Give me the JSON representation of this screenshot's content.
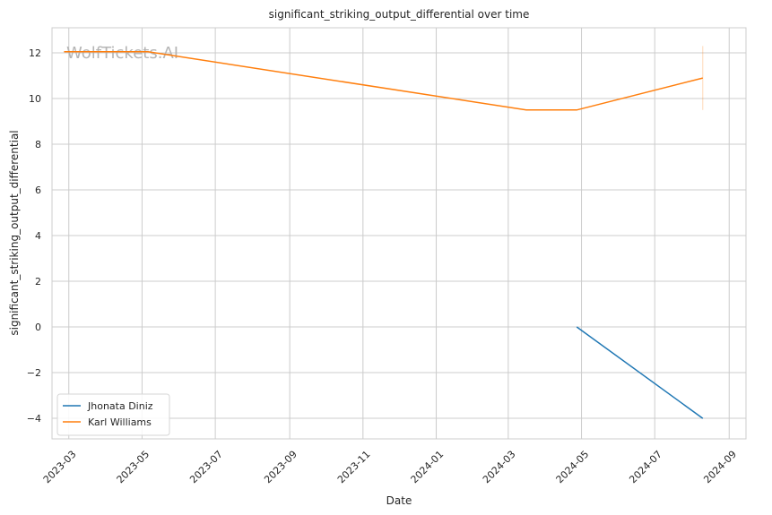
{
  "chart_data": {
    "type": "line",
    "title": "significant_striking_output_differential over time",
    "xlabel": "Date",
    "ylabel": "significant_striking_output_differential",
    "watermark": "WolfTickets.AI",
    "x_range": [
      "2023-02-15",
      "2024-09-15"
    ],
    "ylim": [
      -4.9,
      13.1
    ],
    "x_ticks": [
      "2023-03",
      "2023-05",
      "2023-07",
      "2023-09",
      "2023-11",
      "2024-01",
      "2024-03",
      "2024-05",
      "2024-07",
      "2024-09"
    ],
    "y_ticks": [
      -4,
      -2,
      0,
      2,
      4,
      6,
      8,
      10,
      12
    ],
    "grid": true,
    "legend_position": "lower-left",
    "series": [
      {
        "name": "Jhonata Diniz",
        "color": "#1f77b4",
        "points": [
          {
            "x": "2024-04-27",
            "y": 0.0
          },
          {
            "x": "2024-08-10",
            "y": -4.0
          }
        ]
      },
      {
        "name": "Karl Williams",
        "color": "#ff7f0e",
        "points": [
          {
            "x": "2023-02-25",
            "y": 12.05
          },
          {
            "x": "2023-05-06",
            "y": 12.05
          },
          {
            "x": "2024-03-16",
            "y": 9.5
          },
          {
            "x": "2024-04-27",
            "y": 9.5
          },
          {
            "x": "2024-08-10",
            "y": 10.9
          }
        ],
        "error_band": {
          "x": "2024-08-10",
          "low": 9.5,
          "high": 12.3
        }
      }
    ]
  }
}
